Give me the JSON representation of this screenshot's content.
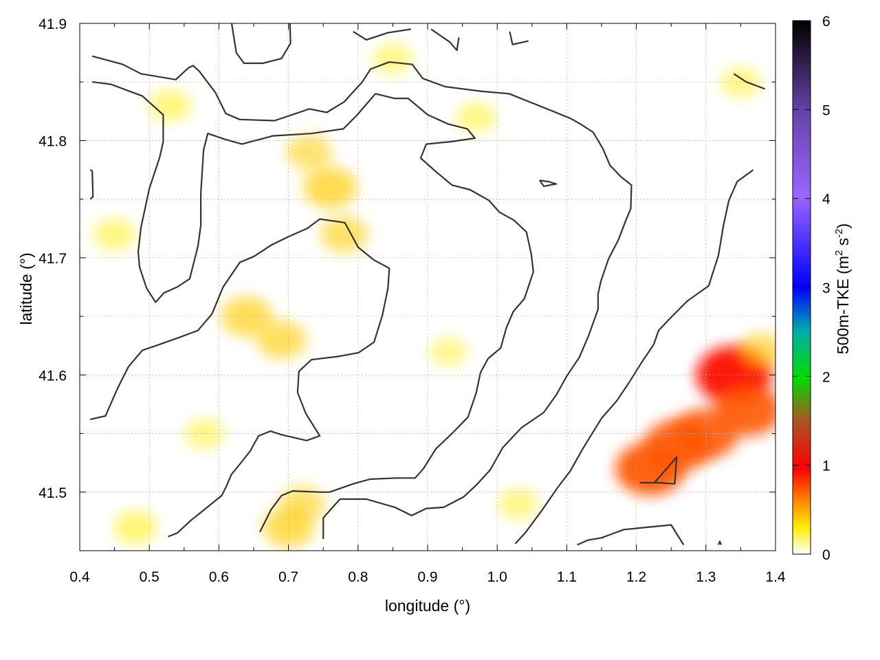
{
  "chart_data": {
    "type": "heatmap",
    "title": "",
    "xlabel": "longitude (°)",
    "ylabel": "latitude (°)",
    "colorbar_label": "500m-TKE (m² s⁻²)",
    "colorbar_label_parts": {
      "base": "500m-TKE (m",
      "sup1": "2",
      "mid": " s",
      "sup2": "-2",
      "end": ")"
    },
    "xlim": [
      0.4,
      1.4
    ],
    "ylim": [
      41.45,
      41.9
    ],
    "clim": [
      0,
      6
    ],
    "xticks": [
      "0.4",
      "0.5",
      "0.6",
      "0.7",
      "0.8",
      "0.9",
      "1.0",
      "1.1",
      "1.2",
      "1.3",
      "1.4"
    ],
    "yticks": [
      "41.5",
      "41.6",
      "41.7",
      "41.8",
      "41.9"
    ],
    "cticks": [
      "0",
      "1",
      "2",
      "3",
      "4",
      "5",
      "6"
    ],
    "grid": true,
    "colormap": [
      "#ffffff",
      "#ffee00",
      "#ff8800",
      "#ff0000",
      "#aa5522",
      "#00dd00",
      "#00aaaa",
      "#0000ff",
      "#9966ff",
      "#6644aa",
      "#000000"
    ],
    "tke_hotspots": [
      {
        "lon": 0.76,
        "lat": 41.76,
        "value": 0.55
      },
      {
        "lon": 0.73,
        "lat": 41.79,
        "value": 0.35
      },
      {
        "lon": 0.78,
        "lat": 41.72,
        "value": 0.4
      },
      {
        "lon": 0.64,
        "lat": 41.65,
        "value": 0.5
      },
      {
        "lon": 0.69,
        "lat": 41.63,
        "value": 0.45
      },
      {
        "lon": 0.7,
        "lat": 41.47,
        "value": 0.5
      },
      {
        "lon": 0.72,
        "lat": 41.49,
        "value": 0.35
      },
      {
        "lon": 0.53,
        "lat": 41.83,
        "value": 0.25
      },
      {
        "lon": 0.45,
        "lat": 41.72,
        "value": 0.25
      },
      {
        "lon": 0.48,
        "lat": 41.47,
        "value": 0.3
      },
      {
        "lon": 0.58,
        "lat": 41.55,
        "value": 0.2
      },
      {
        "lon": 1.22,
        "lat": 41.52,
        "value": 0.95
      },
      {
        "lon": 1.26,
        "lat": 41.54,
        "value": 0.9
      },
      {
        "lon": 1.3,
        "lat": 41.55,
        "value": 0.85
      },
      {
        "lon": 1.34,
        "lat": 41.6,
        "value": 1.1
      },
      {
        "lon": 1.36,
        "lat": 41.57,
        "value": 0.9
      },
      {
        "lon": 1.38,
        "lat": 41.62,
        "value": 0.4
      },
      {
        "lon": 0.85,
        "lat": 41.87,
        "value": 0.2
      },
      {
        "lon": 0.97,
        "lat": 41.82,
        "value": 0.2
      },
      {
        "lon": 0.93,
        "lat": 41.62,
        "value": 0.15
      },
      {
        "lon": 1.03,
        "lat": 41.49,
        "value": 0.2
      },
      {
        "lon": 1.35,
        "lat": 41.85,
        "value": 0.2
      }
    ],
    "contours": [
      [
        [
          0.418,
          41.872
        ],
        [
          0.462,
          41.865
        ],
        [
          0.488,
          41.857
        ],
        [
          0.538,
          41.852
        ],
        [
          0.556,
          41.862
        ],
        [
          0.563,
          41.864
        ],
        [
          0.572,
          41.859
        ],
        [
          0.595,
          41.841
        ],
        [
          0.61,
          41.823
        ],
        [
          0.63,
          41.818
        ],
        [
          0.68,
          41.817
        ],
        [
          0.73,
          41.827
        ],
        [
          0.755,
          41.824
        ],
        [
          0.78,
          41.833
        ],
        [
          0.806,
          41.85
        ],
        [
          0.818,
          41.861
        ],
        [
          0.845,
          41.867
        ],
        [
          0.878,
          41.865
        ],
        [
          0.893,
          41.853
        ],
        [
          0.925,
          41.846
        ],
        [
          0.978,
          41.842
        ],
        [
          1.017,
          41.84
        ],
        [
          1.08,
          41.825
        ],
        [
          1.105,
          41.819
        ],
        [
          1.12,
          41.814
        ],
        [
          1.138,
          41.807
        ],
        [
          1.152,
          41.793
        ],
        [
          1.162,
          41.779
        ],
        [
          1.178,
          41.769
        ],
        [
          1.193,
          41.762
        ],
        [
          1.192,
          41.742
        ],
        [
          1.185,
          41.732
        ],
        [
          1.174,
          41.715
        ],
        [
          1.16,
          41.699
        ],
        [
          1.149,
          41.68
        ],
        [
          1.145,
          41.669
        ],
        [
          1.145,
          41.656
        ],
        [
          1.131,
          41.633
        ],
        [
          1.118,
          41.615
        ],
        [
          1.1,
          41.599
        ],
        [
          1.085,
          41.583
        ],
        [
          1.067,
          41.568
        ],
        [
          1.035,
          41.555
        ],
        [
          1.008,
          41.538
        ],
        [
          0.99,
          41.519
        ],
        [
          0.97,
          41.506
        ],
        [
          0.952,
          41.496
        ],
        [
          0.923,
          41.487
        ],
        [
          0.898,
          41.486
        ],
        [
          0.877,
          41.48
        ],
        [
          0.853,
          41.487
        ],
        [
          0.812,
          41.494
        ],
        [
          0.774,
          41.494
        ],
        [
          0.762,
          41.486
        ],
        [
          0.75,
          41.478
        ],
        [
          0.75,
          41.46
        ]
      ],
      [
        [
          0.418,
          41.85
        ],
        [
          0.445,
          41.848
        ],
        [
          0.49,
          41.838
        ],
        [
          0.52,
          41.822
        ],
        [
          0.52,
          41.799
        ],
        [
          0.515,
          41.786
        ],
        [
          0.5,
          41.759
        ],
        [
          0.488,
          41.726
        ],
        [
          0.484,
          41.705
        ],
        [
          0.486,
          41.692
        ],
        [
          0.496,
          41.674
        ],
        [
          0.509,
          41.662
        ],
        [
          0.521,
          41.67
        ],
        [
          0.54,
          41.675
        ],
        [
          0.558,
          41.682
        ],
        [
          0.57,
          41.71
        ],
        [
          0.574,
          41.728
        ],
        [
          0.574,
          41.755
        ],
        [
          0.578,
          41.792
        ],
        [
          0.584,
          41.806
        ],
        [
          0.609,
          41.801
        ],
        [
          0.633,
          41.797
        ],
        [
          0.678,
          41.804
        ],
        [
          0.733,
          41.806
        ],
        [
          0.779,
          41.81
        ],
        [
          0.799,
          41.822
        ],
        [
          0.825,
          41.84
        ],
        [
          0.852,
          41.836
        ],
        [
          0.872,
          41.836
        ],
        [
          0.9,
          41.822
        ],
        [
          0.93,
          41.814
        ],
        [
          0.957,
          41.81
        ],
        [
          0.968,
          41.802
        ],
        [
          0.933,
          41.799
        ],
        [
          0.898,
          41.797
        ],
        [
          0.89,
          41.785
        ],
        [
          0.911,
          41.774
        ],
        [
          0.935,
          41.762
        ],
        [
          0.961,
          41.758
        ],
        [
          0.988,
          41.749
        ],
        [
          1.003,
          41.739
        ],
        [
          1.024,
          41.732
        ],
        [
          1.042,
          41.722
        ],
        [
          1.049,
          41.703
        ],
        [
          1.052,
          41.688
        ],
        [
          1.039,
          41.665
        ],
        [
          1.023,
          41.654
        ],
        [
          1.013,
          41.64
        ],
        [
          1.005,
          41.623
        ],
        [
          0.987,
          41.614
        ],
        [
          0.976,
          41.602
        ],
        [
          0.97,
          41.585
        ],
        [
          0.958,
          41.564
        ],
        [
          0.935,
          41.55
        ],
        [
          0.912,
          41.537
        ],
        [
          0.894,
          41.52
        ],
        [
          0.882,
          41.512
        ],
        [
          0.855,
          41.512
        ],
        [
          0.817,
          41.511
        ],
        [
          0.793,
          41.507
        ],
        [
          0.759,
          41.5
        ],
        [
          0.746,
          41.5
        ],
        [
          0.706,
          41.501
        ],
        [
          0.69,
          41.497
        ],
        [
          0.675,
          41.485
        ],
        [
          0.659,
          41.466
        ]
      ],
      [
        [
          0.415,
          41.562
        ],
        [
          0.437,
          41.565
        ],
        [
          0.454,
          41.588
        ],
        [
          0.47,
          41.607
        ],
        [
          0.49,
          41.621
        ],
        [
          0.51,
          41.625
        ],
        [
          0.543,
          41.632
        ],
        [
          0.57,
          41.638
        ],
        [
          0.59,
          41.652
        ],
        [
          0.606,
          41.675
        ],
        [
          0.63,
          41.696
        ],
        [
          0.65,
          41.701
        ],
        [
          0.676,
          41.711
        ],
        [
          0.7,
          41.718
        ],
        [
          0.727,
          41.725
        ],
        [
          0.745,
          41.733
        ],
        [
          0.781,
          41.73
        ],
        [
          0.8,
          41.709
        ],
        [
          0.823,
          41.698
        ],
        [
          0.845,
          41.691
        ],
        [
          0.843,
          41.674
        ],
        [
          0.835,
          41.651
        ],
        [
          0.823,
          41.628
        ],
        [
          0.801,
          41.619
        ],
        [
          0.774,
          41.616
        ],
        [
          0.733,
          41.613
        ],
        [
          0.715,
          41.603
        ],
        [
          0.713,
          41.585
        ],
        [
          0.725,
          41.567
        ],
        [
          0.745,
          41.548
        ],
        [
          0.726,
          41.544
        ],
        [
          0.69,
          41.549
        ],
        [
          0.674,
          41.552
        ],
        [
          0.657,
          41.548
        ],
        [
          0.645,
          41.535
        ],
        [
          0.633,
          41.526
        ],
        [
          0.618,
          41.515
        ],
        [
          0.61,
          41.504
        ],
        [
          0.604,
          41.497
        ],
        [
          0.577,
          41.484
        ],
        [
          0.56,
          41.476
        ],
        [
          0.54,
          41.465
        ],
        [
          0.527,
          41.462
        ]
      ],
      [
        [
          0.617,
          41.905
        ],
        [
          0.625,
          41.875
        ],
        [
          0.636,
          41.866
        ],
        [
          0.663,
          41.866
        ],
        [
          0.69,
          41.87
        ],
        [
          0.703,
          41.883
        ],
        [
          0.702,
          41.904
        ]
      ],
      [
        [
          0.793,
          41.893
        ],
        [
          0.812,
          41.886
        ],
        [
          0.843,
          41.892
        ],
        [
          0.876,
          41.895
        ]
      ],
      [
        [
          0.905,
          41.895
        ],
        [
          0.932,
          41.884
        ],
        [
          0.942,
          41.877
        ],
        [
          0.945,
          41.888
        ]
      ],
      [
        [
          1.018,
          41.893
        ],
        [
          1.022,
          41.882
        ],
        [
          1.045,
          41.885
        ]
      ],
      [
        [
          1.061,
          41.766
        ],
        [
          1.073,
          41.765
        ],
        [
          1.085,
          41.763
        ],
        [
          1.067,
          41.761
        ],
        [
          1.061,
          41.766
        ]
      ],
      [
        [
          1.026,
          41.456
        ],
        [
          1.04,
          41.465
        ],
        [
          1.065,
          41.485
        ],
        [
          1.087,
          41.504
        ],
        [
          1.105,
          41.518
        ],
        [
          1.123,
          41.537
        ],
        [
          1.15,
          41.563
        ],
        [
          1.172,
          41.578
        ],
        [
          1.19,
          41.594
        ],
        [
          1.208,
          41.611
        ],
        [
          1.225,
          41.626
        ],
        [
          1.232,
          41.638
        ],
        [
          1.248,
          41.648
        ],
        [
          1.273,
          41.663
        ],
        [
          1.304,
          41.676
        ],
        [
          1.318,
          41.702
        ],
        [
          1.325,
          41.727
        ],
        [
          1.333,
          41.749
        ],
        [
          1.345,
          41.765
        ],
        [
          1.368,
          41.775
        ]
      ],
      [
        [
          1.205,
          41.508
        ],
        [
          1.232,
          41.508
        ],
        [
          1.255,
          41.507
        ],
        [
          1.258,
          41.53
        ],
        [
          1.248,
          41.523
        ],
        [
          1.226,
          41.508
        ]
      ],
      [
        [
          1.115,
          41.455
        ],
        [
          1.13,
          41.459
        ],
        [
          1.15,
          41.461
        ],
        [
          1.182,
          41.468
        ],
        [
          1.216,
          41.47
        ],
        [
          1.25,
          41.472
        ],
        [
          1.268,
          41.455
        ]
      ],
      [
        [
          1.318,
          41.455
        ],
        [
          1.32,
          41.458
        ],
        [
          1.322,
          41.455
        ]
      ],
      [
        [
          0.415,
          41.775
        ],
        [
          0.418,
          41.774
        ],
        [
          0.419,
          41.752
        ],
        [
          0.415,
          41.75
        ]
      ],
      [
        [
          1.34,
          41.857
        ],
        [
          1.358,
          41.85
        ],
        [
          1.385,
          41.844
        ]
      ]
    ]
  }
}
